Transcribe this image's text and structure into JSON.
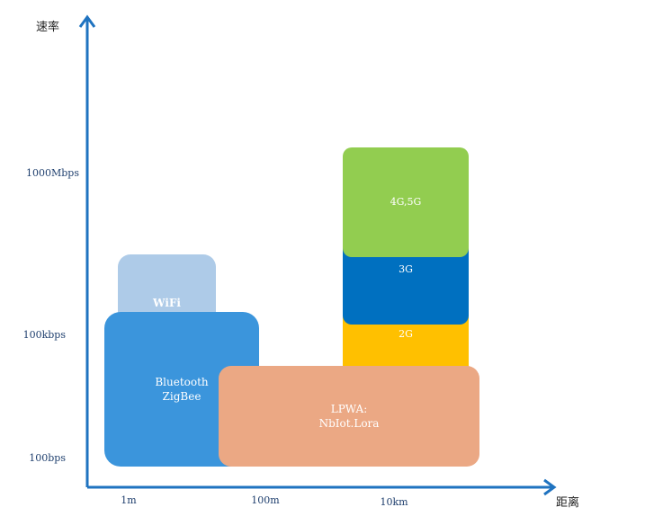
{
  "axes": {
    "y_label": "速率",
    "x_label": "距离",
    "y_ticks": [
      "1000Mbps",
      "100kbps",
      "100bps"
    ],
    "x_ticks": [
      "1m",
      "100m",
      "10km"
    ],
    "color": "#1f73c0"
  },
  "regions": {
    "wifi": {
      "label": "WiFi",
      "color": "#aecbe8"
    },
    "bluetooth": {
      "label": "Bluetooth\nZigBee",
      "color": "#3b95dc"
    },
    "lpwa": {
      "label": "LPWA:\nNbIot.Lora",
      "color": "#eba884"
    },
    "g2": {
      "label": "2G",
      "color": "#ffc000"
    },
    "g3": {
      "label": "3G",
      "color": "#0070c0"
    },
    "g45": {
      "label": "4G,5G",
      "color": "#92cd50"
    }
  }
}
